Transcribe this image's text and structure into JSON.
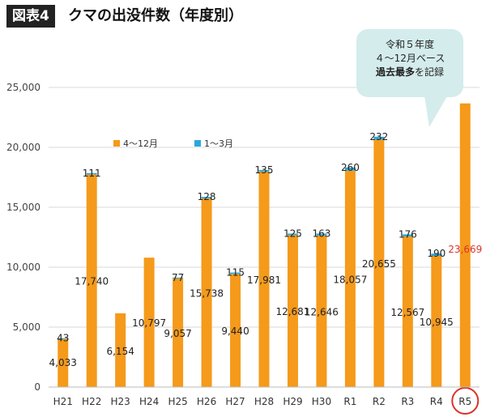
{
  "header": {
    "badge": "図表4",
    "title": "クマの出没件数（年度別）"
  },
  "callout": {
    "line1": "令和５年度",
    "line2": "４～12月ベース",
    "line3_bold": "過去最多",
    "line3_rest": "を記録"
  },
  "colors": {
    "apr_dec": "#f59a1a",
    "jan_mar": "#2aa8dc",
    "highlight_text": "#d9342b",
    "highlight_circle": "#d9342b",
    "grid": "#d9d9d9",
    "callout_bg": "#d4ecec"
  },
  "chart_data": {
    "type": "bar",
    "stacked": true,
    "categories": [
      "H21",
      "H22",
      "H23",
      "H24",
      "H25",
      "H26",
      "H27",
      "H28",
      "H29",
      "H30",
      "R1",
      "R2",
      "R3",
      "R4",
      "R5"
    ],
    "series": [
      {
        "name": "4～12月",
        "values": [
          4033,
          17740,
          6154,
          10797,
          9057,
          15738,
          9440,
          17981,
          12681,
          12646,
          18057,
          20655,
          12567,
          10945,
          23669
        ]
      },
      {
        "name": "1～3月",
        "values": [
          43,
          111,
          null,
          null,
          77,
          128,
          115,
          135,
          125,
          163,
          260,
          232,
          176,
          190,
          null
        ]
      }
    ],
    "labels_apr_dec": [
      "4,033",
      "17,740",
      "6,154",
      "10,797",
      "9,057",
      "15,738",
      "9,440",
      "17,981",
      "12,681",
      "12,646",
      "18,057",
      "20,655",
      "12,567",
      "10,945",
      "23,669"
    ],
    "labels_jan_mar": [
      "43",
      "111",
      "",
      "",
      "77",
      "128",
      "115",
      "135",
      "125",
      "163",
      "260",
      "232",
      "176",
      "190",
      ""
    ],
    "y_ticks": [
      0,
      5000,
      10000,
      15000,
      20000,
      25000
    ],
    "y_tick_labels": [
      "0",
      "5,000",
      "10,000",
      "15,000",
      "20,000",
      "25,000"
    ],
    "ylim": [
      0,
      25000
    ],
    "legend_placement": "top-left",
    "grid": true,
    "highlight_category": "R5"
  }
}
